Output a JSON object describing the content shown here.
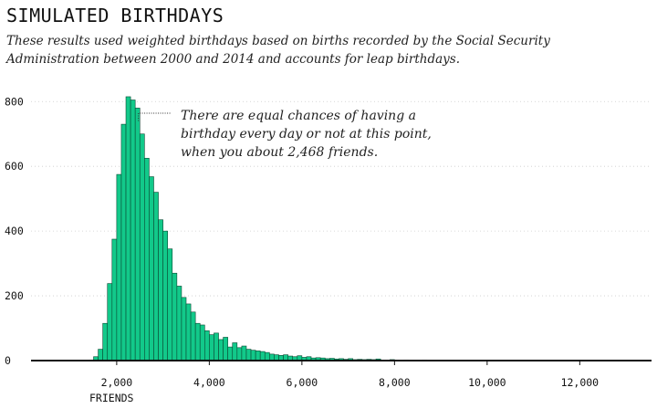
{
  "header": {
    "title": "SIMULATED BIRTHDAYS",
    "subtitle": "These results used weighted birthdays based on births recorded by the Social Security Administration between 2000 and 2014 and accounts for leap birthdays."
  },
  "colors": {
    "bar_fill": "#12c98a",
    "bar_stroke": "#0a4a33",
    "axis": "#111111",
    "grid": "#cccccc"
  },
  "chart_data": {
    "type": "bar",
    "xlabel": "FRIENDS",
    "ylabel": "",
    "x_ticks": [
      2000,
      4000,
      6000,
      8000,
      10000,
      12000
    ],
    "x_tick_labels": [
      "2,000",
      "4,000",
      "6,000",
      "8,000",
      "10,000",
      "12,000"
    ],
    "y_ticks": [
      0,
      200,
      400,
      600,
      800
    ],
    "y_tick_labels": [
      "0",
      "200",
      "400",
      "600",
      "800"
    ],
    "xlim": [
      150,
      13550
    ],
    "ylim": [
      0,
      860
    ],
    "grid": "horizontal",
    "bin_width": 100,
    "bins": [
      [
        1400,
        2
      ],
      [
        1500,
        12
      ],
      [
        1600,
        35
      ],
      [
        1700,
        115
      ],
      [
        1800,
        238
      ],
      [
        1900,
        375
      ],
      [
        2000,
        575
      ],
      [
        2100,
        730
      ],
      [
        2200,
        815
      ],
      [
        2300,
        805
      ],
      [
        2400,
        780
      ],
      [
        2500,
        700
      ],
      [
        2600,
        625
      ],
      [
        2700,
        568
      ],
      [
        2800,
        520
      ],
      [
        2900,
        435
      ],
      [
        3000,
        400
      ],
      [
        3100,
        345
      ],
      [
        3200,
        270
      ],
      [
        3300,
        230
      ],
      [
        3400,
        195
      ],
      [
        3500,
        175
      ],
      [
        3600,
        150
      ],
      [
        3700,
        115
      ],
      [
        3800,
        110
      ],
      [
        3900,
        92
      ],
      [
        4000,
        80
      ],
      [
        4100,
        85
      ],
      [
        4200,
        65
      ],
      [
        4300,
        72
      ],
      [
        4400,
        42
      ],
      [
        4500,
        55
      ],
      [
        4600,
        40
      ],
      [
        4700,
        45
      ],
      [
        4800,
        35
      ],
      [
        4900,
        32
      ],
      [
        5000,
        30
      ],
      [
        5100,
        28
      ],
      [
        5200,
        25
      ],
      [
        5300,
        20
      ],
      [
        5400,
        18
      ],
      [
        5500,
        16
      ],
      [
        5600,
        18
      ],
      [
        5700,
        14
      ],
      [
        5800,
        12
      ],
      [
        5900,
        15
      ],
      [
        6000,
        10
      ],
      [
        6100,
        12
      ],
      [
        6200,
        8
      ],
      [
        6300,
        9
      ],
      [
        6400,
        8
      ],
      [
        6500,
        6
      ],
      [
        6600,
        7
      ],
      [
        6700,
        5
      ],
      [
        6800,
        6
      ],
      [
        6900,
        4
      ],
      [
        7000,
        6
      ],
      [
        7100,
        3
      ],
      [
        7200,
        4
      ],
      [
        7300,
        3
      ],
      [
        7400,
        4
      ],
      [
        7500,
        3
      ],
      [
        7600,
        5
      ],
      [
        7700,
        2
      ],
      [
        7800,
        2
      ],
      [
        7900,
        3
      ],
      [
        8000,
        2
      ],
      [
        8100,
        1
      ],
      [
        8200,
        2
      ],
      [
        8300,
        1
      ],
      [
        8400,
        1
      ],
      [
        8500,
        1
      ],
      [
        8600,
        2
      ],
      [
        8700,
        1
      ],
      [
        8900,
        1
      ],
      [
        9100,
        1
      ],
      [
        9500,
        1
      ],
      [
        9800,
        1
      ]
    ],
    "annotation": {
      "lines": [
        "There are equal chances of having a",
        "birthday every day or not at this point,",
        "when you about 2,468 friends."
      ],
      "target_x": 2468,
      "target_y": 740
    }
  }
}
